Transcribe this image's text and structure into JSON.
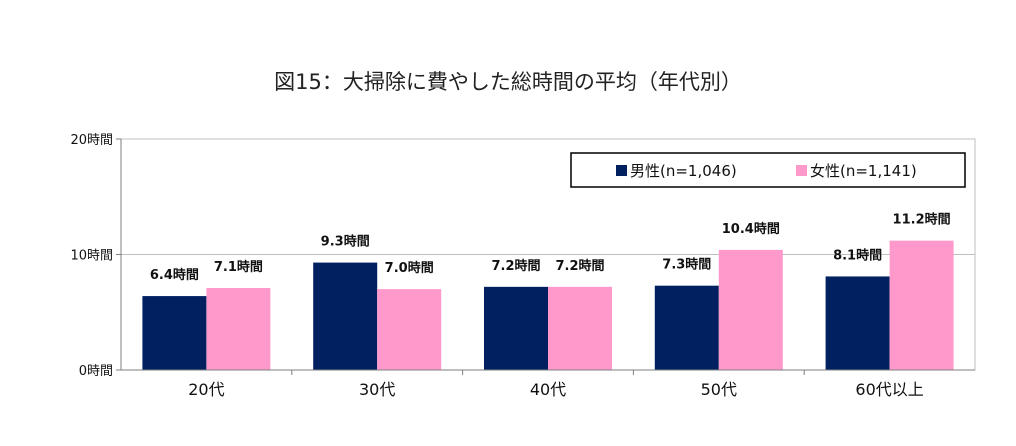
{
  "chart_data": {
    "type": "bar",
    "title": "図15：大掃除に費やした総時間の平均（年代別）",
    "categories": [
      "20代",
      "30代",
      "40代",
      "50代",
      "60代以上"
    ],
    "series": [
      {
        "name": "男性(n=1,046)",
        "values": [
          6.4,
          9.3,
          7.2,
          7.3,
          8.1
        ],
        "color": "#002060",
        "labels": [
          "6.4時間",
          "9.3時間",
          "7.2時間",
          "7.3時間",
          "8.1時間"
        ]
      },
      {
        "name": "女性(n=1,141)",
        "values": [
          7.1,
          7.0,
          7.2,
          10.4,
          11.2
        ],
        "color": "#ff99cc",
        "labels": [
          "7.1時間",
          "7.0時間",
          "7.2時間",
          "10.4時間",
          "11.2時間"
        ]
      }
    ],
    "y_ticks": [
      {
        "value": 0,
        "label": "0時間"
      },
      {
        "value": 10,
        "label": "10時間"
      },
      {
        "value": 20,
        "label": "20時間"
      }
    ],
    "ylim": [
      0,
      20
    ],
    "grid": true,
    "legend_position": "top-right"
  }
}
